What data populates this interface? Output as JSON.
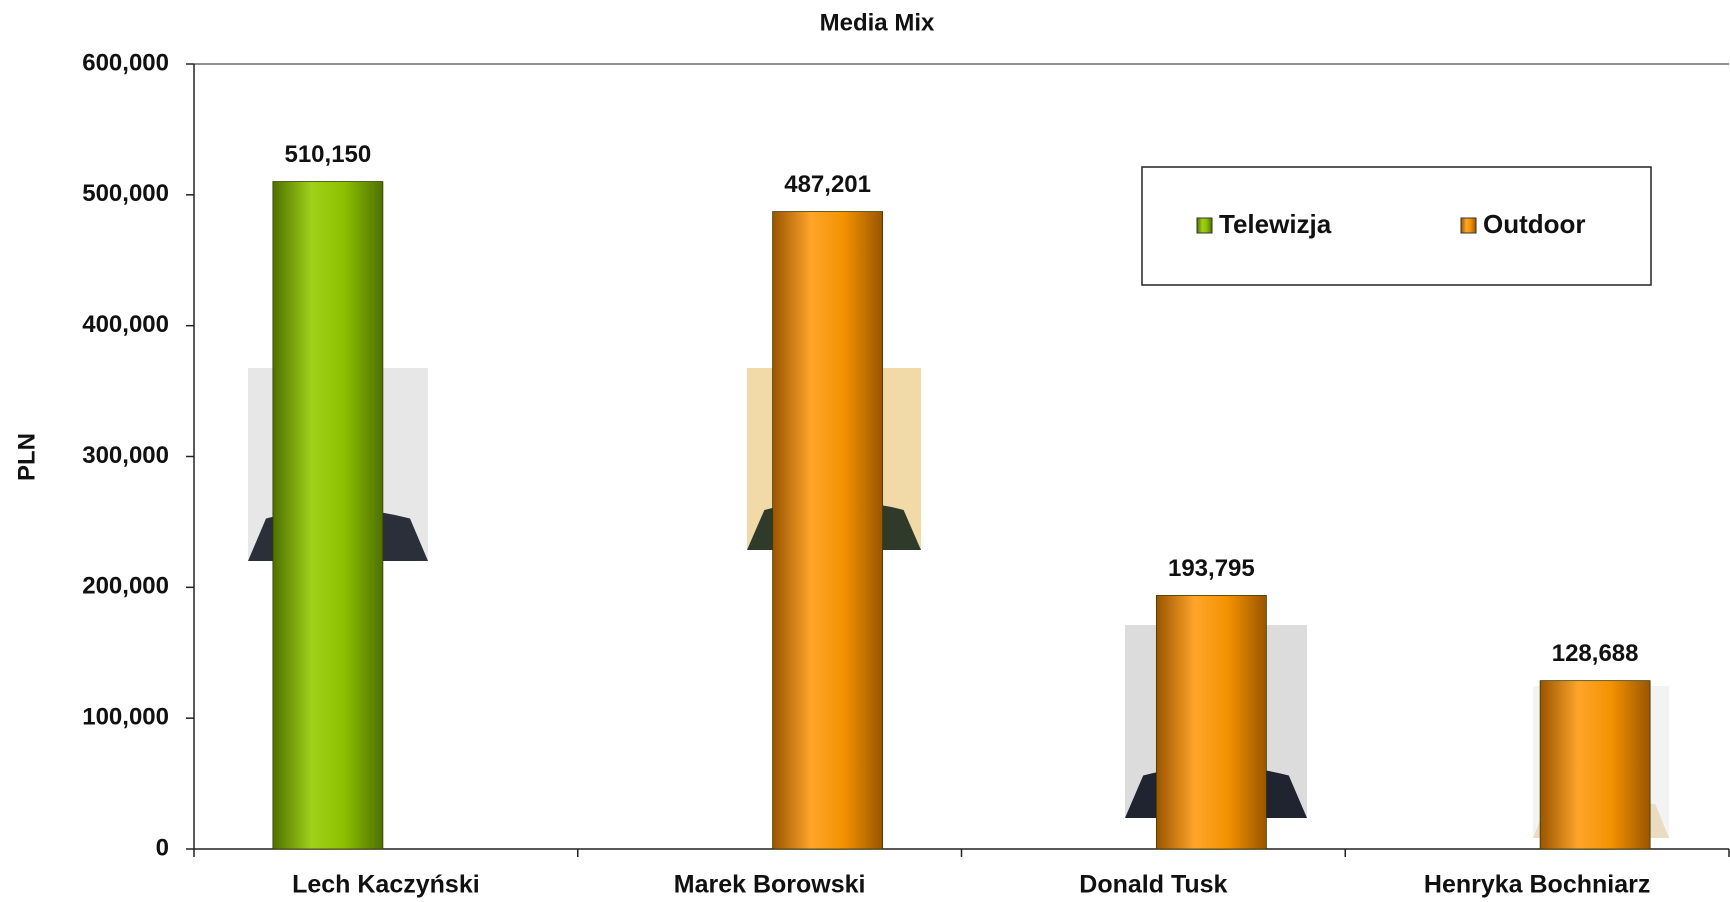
{
  "chart_data": {
    "type": "bar",
    "title": "Media Mix",
    "y_label": "PLN",
    "categories": [
      "Lech Kaczyński",
      "Marek Borowski",
      "Donald Tusk",
      "Henryka Bochniarz"
    ],
    "series": [
      {
        "name": "Telewizja",
        "color": "#8cc000",
        "values": [
          510150,
          null,
          null,
          null
        ],
        "value_labels": [
          "510,150",
          null,
          null,
          null
        ]
      },
      {
        "name": "Outdoor",
        "color": "#f39200",
        "values": [
          null,
          487201,
          193795,
          128688
        ],
        "value_labels": [
          null,
          "487,201",
          "193,795",
          "128,688"
        ]
      }
    ],
    "ylim": [
      0,
      600000
    ],
    "yticks": [
      0,
      {
        "value": 100000,
        "label": "100,000"
      },
      {
        "value": 200000,
        "label": "200,000"
      },
      {
        "value": 300000,
        "label": "300,000"
      },
      {
        "value": 400000,
        "label": "400,000"
      },
      {
        "value": 500000,
        "label": "500,000"
      },
      {
        "value": 600000,
        "label": "600,000"
      }
    ],
    "grid": false,
    "legend": "upper right"
  }
}
